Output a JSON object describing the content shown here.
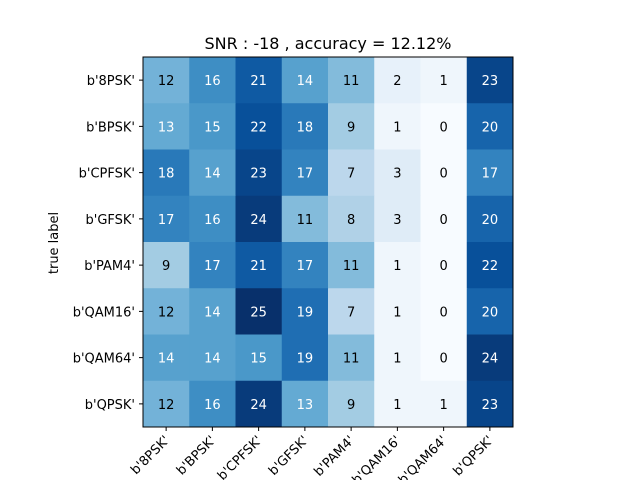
{
  "chart_data": {
    "type": "heatmap",
    "title": "SNR : -18 , accuracy = 12.12%",
    "ylabel": "true label",
    "xlabel": "",
    "x_categories": [
      "b'8PSK'",
      "b'BPSK'",
      "b'CPFSK'",
      "b'GFSK'",
      "b'PAM4'",
      "b'QAM16'",
      "b'QAM64'",
      "b'QPSK'"
    ],
    "y_categories": [
      "b'8PSK'",
      "b'BPSK'",
      "b'CPFSK'",
      "b'GFSK'",
      "b'PAM4'",
      "b'QAM16'",
      "b'QAM64'",
      "b'QPSK'"
    ],
    "values": [
      [
        12,
        16,
        21,
        14,
        11,
        2,
        1,
        23
      ],
      [
        13,
        15,
        22,
        18,
        9,
        1,
        0,
        20
      ],
      [
        18,
        14,
        23,
        17,
        7,
        3,
        0,
        17
      ],
      [
        17,
        16,
        24,
        11,
        8,
        3,
        0,
        20
      ],
      [
        9,
        17,
        21,
        17,
        11,
        1,
        0,
        22
      ],
      [
        12,
        14,
        25,
        19,
        7,
        1,
        0,
        20
      ],
      [
        14,
        14,
        15,
        19,
        11,
        1,
        0,
        24
      ],
      [
        12,
        16,
        24,
        13,
        9,
        1,
        1,
        23
      ]
    ],
    "colormap": "Blues",
    "vmin": 0,
    "vmax": 25
  }
}
